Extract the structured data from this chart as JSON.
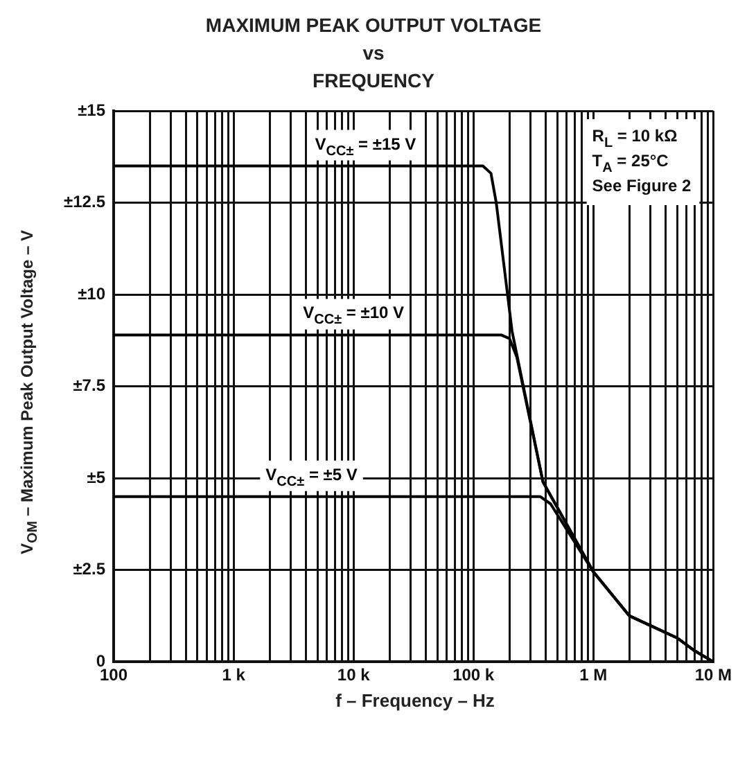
{
  "chart_data": {
    "type": "line",
    "title": "MAXIMUM PEAK OUTPUT VOLTAGE\nvs\nFREQUENCY",
    "xlabel": "f – Frequency – Hz",
    "ylabel": "V$_{OM}$ – Maximum Peak Output Voltage – V",
    "series": [
      {
        "name": "V$_{CC±}$ = ±15 V",
        "color": "#000000",
        "x": [
          100,
          120000,
          140000,
          155000,
          210000,
          380000,
          1000000,
          2000000,
          5000000,
          7000000,
          10000000
        ],
        "values": [
          13.5,
          13.5,
          13.3,
          12.5,
          9,
          4.9,
          2.45,
          1.25,
          0.65,
          0.3,
          0
        ]
      },
      {
        "name": "V$_{CC±}$ = ±10 V",
        "color": "#000000",
        "x": [
          100,
          170000,
          200000,
          230000,
          380000,
          1000000,
          2000000,
          5000000,
          7000000,
          10000000
        ],
        "values": [
          8.9,
          8.9,
          8.8,
          8.3,
          4.9,
          2.45,
          1.25,
          0.65,
          0.3,
          0
        ]
      },
      {
        "name": "V$_{CC±}$ = ±5 V",
        "color": "#000000",
        "x": [
          100,
          360000,
          440000,
          1000000,
          2000000,
          5000000,
          7000000,
          10000000
        ],
        "values": [
          4.5,
          4.5,
          4.3,
          2.45,
          1.25,
          0.65,
          0.3,
          0
        ]
      }
    ],
    "annotations": [
      "R$_{L}$ = 10 kΩ",
      "T$_{A}$ = 25°C",
      "See Figure 2"
    ],
    "log": "x",
    "xlim": [
      100,
      10000000
    ],
    "ylim": [
      0,
      15
    ],
    "xticks": [
      100,
      {
        "value": 200,
        "label": null
      },
      {
        "value": 300,
        "label": null
      },
      {
        "value": 400,
        "label": null
      },
      {
        "value": 500,
        "label": null
      },
      {
        "value": 600,
        "label": null
      },
      {
        "value": 700,
        "label": null
      },
      {
        "value": 800,
        "label": null
      },
      {
        "value": 900,
        "label": null
      },
      {
        "value": 1000,
        "label": "1 k"
      },
      {
        "value": 2000,
        "label": null
      },
      {
        "value": 3000,
        "label": null
      },
      {
        "value": 4000,
        "label": null
      },
      {
        "value": 5000,
        "label": null
      },
      {
        "value": 6000,
        "label": null
      },
      {
        "value": 7000,
        "label": null
      },
      {
        "value": 8000,
        "label": null
      },
      {
        "value": 9000,
        "label": null
      },
      {
        "value": 10000,
        "label": "10 k"
      },
      {
        "value": 20000,
        "label": null
      },
      {
        "value": 30000,
        "label": null
      },
      {
        "value": 40000,
        "label": null
      },
      {
        "value": 50000,
        "label": null
      },
      {
        "value": 60000,
        "label": null
      },
      {
        "value": 70000,
        "label": null
      },
      {
        "value": 80000,
        "label": null
      },
      {
        "value": 90000,
        "label": null
      },
      {
        "value": 100000,
        "label": "100 k"
      },
      {
        "value": 200000,
        "label": null
      },
      {
        "value": 300000,
        "label": null
      },
      {
        "value": 400000,
        "label": null
      },
      {
        "value": 500000,
        "label": null
      },
      {
        "value": 600000,
        "label": null
      },
      {
        "value": 700000,
        "label": null
      },
      {
        "value": 800000,
        "label": null
      },
      {
        "value": 900000,
        "label": null
      },
      {
        "value": 1000000,
        "label": "1 M"
      },
      {
        "value": 2000000,
        "label": null
      },
      {
        "value": 3000000,
        "label": null
      },
      {
        "value": 4000000,
        "label": null
      },
      {
        "value": 5000000,
        "label": null
      },
      {
        "value": 6000000,
        "label": null
      },
      {
        "value": 7000000,
        "label": null
      },
      {
        "value": 8000000,
        "label": null
      },
      {
        "value": 9000000,
        "label": null
      },
      {
        "value": 10000000,
        "label": "10 M"
      }
    ],
    "yticks": [
      0,
      {
        "value": 2.5,
        "label": "±2.5"
      },
      {
        "value": 5,
        "label": "±5"
      },
      {
        "value": 7.5,
        "label": "±7.5"
      },
      {
        "value": 10,
        "label": "±10"
      },
      {
        "value": 12.5,
        "label": "±12.5"
      },
      {
        "value": 15,
        "label": "±15"
      }
    ],
    "grid": true,
    "legend": false,
    "marker": "none",
    "line_style": "solid"
  }
}
